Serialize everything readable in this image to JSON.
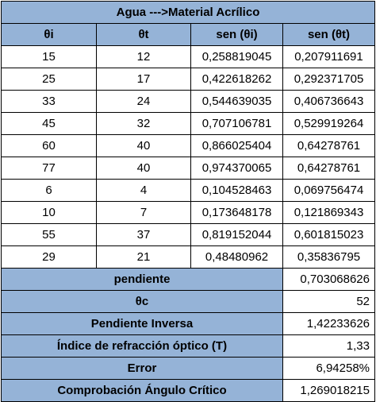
{
  "table": {
    "title": "Agua --->Material Acrílico",
    "headers": [
      "θi",
      "θt",
      "sen (θi)",
      "sen (θt)"
    ],
    "rows": [
      [
        "15",
        "12",
        "0,258819045",
        "0,207911691"
      ],
      [
        "25",
        "17",
        "0,422618262",
        "0,292371705"
      ],
      [
        "33",
        "24",
        "0,544639035",
        "0,406736643"
      ],
      [
        "45",
        "32",
        "0,707106781",
        "0,529919264"
      ],
      [
        "60",
        "40",
        "0,866025404",
        "0,64278761"
      ],
      [
        "77",
        "40",
        "0,974370065",
        "0,64278761"
      ],
      [
        "6",
        "4",
        "0,104528463",
        "0,069756474"
      ],
      [
        "10",
        "7",
        "0,173648178",
        "0,121869343"
      ],
      [
        "55",
        "37",
        "0,819152044",
        "0,601815023"
      ],
      [
        "29",
        "21",
        "0,48480962",
        "0,35836795"
      ]
    ],
    "summary": [
      {
        "label": "pendiente",
        "value": "0,703068626"
      },
      {
        "label": "θc",
        "value": "52"
      },
      {
        "label": "Pendiente Inversa",
        "value": "1,42233626"
      },
      {
        "label": "Índice de refracción óptico (T)",
        "value": "1,33"
      },
      {
        "label": "Error",
        "value": "6,94258%"
      },
      {
        "label": "Comprobación Ángulo Crítico",
        "value": "1,269018215"
      }
    ]
  },
  "colors": {
    "header_fill": "#95b3d7",
    "grid": "#000000"
  }
}
